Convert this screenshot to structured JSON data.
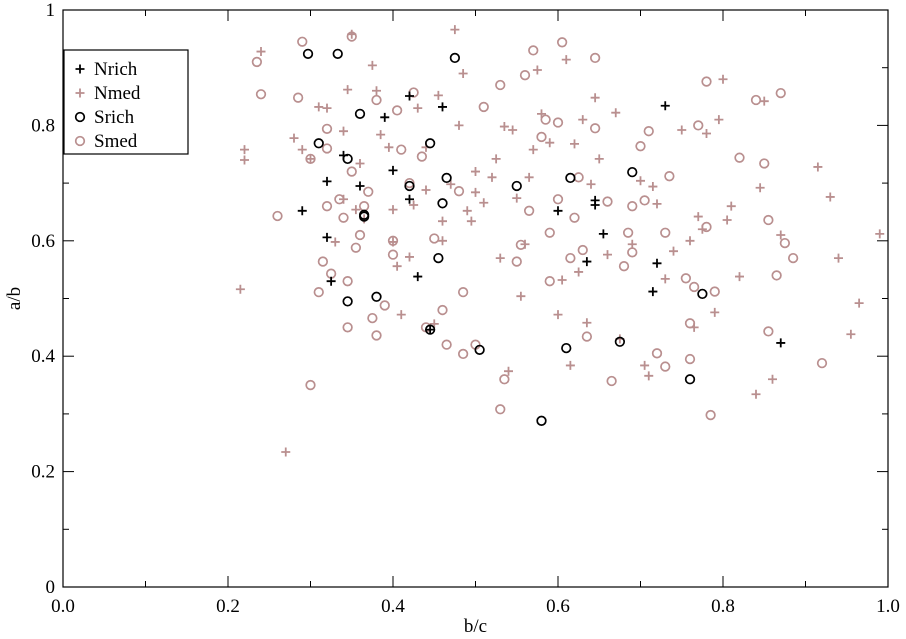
{
  "chart_data": {
    "type": "scatter",
    "xlabel": "b/c",
    "ylabel": "a/b",
    "xlim": [
      0,
      1
    ],
    "ylim": [
      0,
      1
    ],
    "x_ticks": [
      "0.0",
      "0.2",
      "0.4",
      "0.6",
      "0.8",
      "1.0"
    ],
    "y_ticks": [
      "0",
      "0.2",
      "0.4",
      "0.6",
      "0.8",
      "1"
    ],
    "grid": false,
    "legend_position": "top-left",
    "colors": {
      "rich": "#000000",
      "med": "#b98f8f"
    },
    "series": [
      {
        "name": "Nrich",
        "marker": "plus",
        "color": "#000000",
        "points": [
          [
            0.29,
            0.652
          ],
          [
            0.32,
            0.703
          ],
          [
            0.32,
            0.606
          ],
          [
            0.325,
            0.53
          ],
          [
            0.34,
            0.748
          ],
          [
            0.36,
            0.695
          ],
          [
            0.39,
            0.814
          ],
          [
            0.4,
            0.722
          ],
          [
            0.42,
            0.851
          ],
          [
            0.42,
            0.672
          ],
          [
            0.43,
            0.538
          ],
          [
            0.445,
            0.446
          ],
          [
            0.46,
            0.832
          ],
          [
            0.6,
            0.652
          ],
          [
            0.635,
            0.564
          ],
          [
            0.645,
            0.67
          ],
          [
            0.645,
            0.662
          ],
          [
            0.655,
            0.612
          ],
          [
            0.715,
            0.512
          ],
          [
            0.72,
            0.561
          ],
          [
            0.73,
            0.834
          ],
          [
            0.87,
            0.423
          ]
        ]
      },
      {
        "name": "Nmed",
        "marker": "plus",
        "color": "#b98f8f",
        "points": [
          [
            0.215,
            0.516
          ],
          [
            0.22,
            0.74
          ],
          [
            0.22,
            0.758
          ],
          [
            0.24,
            0.928
          ],
          [
            0.27,
            0.234
          ],
          [
            0.28,
            0.778
          ],
          [
            0.29,
            0.758
          ],
          [
            0.3,
            0.742
          ],
          [
            0.31,
            0.832
          ],
          [
            0.32,
            0.83
          ],
          [
            0.33,
            0.598
          ],
          [
            0.34,
            0.79
          ],
          [
            0.34,
            0.672
          ],
          [
            0.345,
            0.862
          ],
          [
            0.355,
            0.654
          ],
          [
            0.35,
            0.958
          ],
          [
            0.36,
            0.734
          ],
          [
            0.365,
            0.638
          ],
          [
            0.375,
            0.904
          ],
          [
            0.38,
            0.86
          ],
          [
            0.385,
            0.784
          ],
          [
            0.395,
            0.762
          ],
          [
            0.4,
            0.654
          ],
          [
            0.4,
            0.598
          ],
          [
            0.405,
            0.556
          ],
          [
            0.41,
            0.472
          ],
          [
            0.42,
            0.572
          ],
          [
            0.425,
            0.662
          ],
          [
            0.43,
            0.83
          ],
          [
            0.44,
            0.762
          ],
          [
            0.44,
            0.688
          ],
          [
            0.45,
            0.456
          ],
          [
            0.455,
            0.852
          ],
          [
            0.46,
            0.634
          ],
          [
            0.46,
            0.6
          ],
          [
            0.47,
            0.698
          ],
          [
            0.475,
            0.966
          ],
          [
            0.48,
            0.8
          ],
          [
            0.485,
            0.89
          ],
          [
            0.49,
            0.652
          ],
          [
            0.495,
            0.634
          ],
          [
            0.5,
            0.72
          ],
          [
            0.5,
            0.684
          ],
          [
            0.51,
            0.666
          ],
          [
            0.52,
            0.71
          ],
          [
            0.525,
            0.742
          ],
          [
            0.53,
            0.57
          ],
          [
            0.535,
            0.798
          ],
          [
            0.54,
            0.374
          ],
          [
            0.545,
            0.792
          ],
          [
            0.55,
            0.674
          ],
          [
            0.555,
            0.504
          ],
          [
            0.56,
            0.594
          ],
          [
            0.565,
            0.71
          ],
          [
            0.57,
            0.758
          ],
          [
            0.575,
            0.896
          ],
          [
            0.58,
            0.82
          ],
          [
            0.59,
            0.77
          ],
          [
            0.6,
            0.472
          ],
          [
            0.605,
            0.532
          ],
          [
            0.61,
            0.914
          ],
          [
            0.615,
            0.384
          ],
          [
            0.62,
            0.768
          ],
          [
            0.625,
            0.546
          ],
          [
            0.63,
            0.81
          ],
          [
            0.635,
            0.458
          ],
          [
            0.64,
            0.698
          ],
          [
            0.645,
            0.848
          ],
          [
            0.65,
            0.742
          ],
          [
            0.66,
            0.576
          ],
          [
            0.67,
            0.822
          ],
          [
            0.675,
            0.43
          ],
          [
            0.69,
            0.594
          ],
          [
            0.7,
            0.704
          ],
          [
            0.705,
            0.384
          ],
          [
            0.71,
            0.366
          ],
          [
            0.715,
            0.694
          ],
          [
            0.72,
            0.664
          ],
          [
            0.73,
            0.534
          ],
          [
            0.74,
            0.582
          ],
          [
            0.75,
            0.792
          ],
          [
            0.76,
            0.6
          ],
          [
            0.765,
            0.45
          ],
          [
            0.77,
            0.642
          ],
          [
            0.775,
            0.62
          ],
          [
            0.78,
            0.786
          ],
          [
            0.79,
            0.476
          ],
          [
            0.795,
            0.81
          ],
          [
            0.8,
            0.88
          ],
          [
            0.805,
            0.636
          ],
          [
            0.81,
            0.66
          ],
          [
            0.82,
            0.538
          ],
          [
            0.84,
            0.334
          ],
          [
            0.845,
            0.692
          ],
          [
            0.85,
            0.842
          ],
          [
            0.86,
            0.36
          ],
          [
            0.87,
            0.61
          ],
          [
            0.915,
            0.728
          ],
          [
            0.93,
            0.676
          ],
          [
            0.94,
            0.57
          ],
          [
            0.955,
            0.438
          ],
          [
            0.965,
            0.492
          ],
          [
            0.99,
            0.612
          ]
        ]
      },
      {
        "name": "Srich",
        "marker": "circle",
        "color": "#000000",
        "points": [
          [
            0.297,
            0.924
          ],
          [
            0.333,
            0.924
          ],
          [
            0.31,
            0.769
          ],
          [
            0.345,
            0.742
          ],
          [
            0.36,
            0.82
          ],
          [
            0.365,
            0.645
          ],
          [
            0.365,
            0.642
          ],
          [
            0.345,
            0.495
          ],
          [
            0.38,
            0.503
          ],
          [
            0.42,
            0.695
          ],
          [
            0.445,
            0.769
          ],
          [
            0.445,
            0.446
          ],
          [
            0.455,
            0.57
          ],
          [
            0.46,
            0.665
          ],
          [
            0.465,
            0.709
          ],
          [
            0.475,
            0.917
          ],
          [
            0.505,
            0.411
          ],
          [
            0.55,
            0.695
          ],
          [
            0.58,
            0.288
          ],
          [
            0.61,
            0.414
          ],
          [
            0.615,
            0.709
          ],
          [
            0.675,
            0.425
          ],
          [
            0.69,
            0.719
          ],
          [
            0.76,
            0.36
          ],
          [
            0.775,
            0.508
          ]
        ]
      },
      {
        "name": "Smed",
        "marker": "circle",
        "color": "#b98f8f",
        "points": [
          [
            0.235,
            0.91
          ],
          [
            0.24,
            0.854
          ],
          [
            0.26,
            0.643
          ],
          [
            0.285,
            0.848
          ],
          [
            0.29,
            0.945
          ],
          [
            0.3,
            0.742
          ],
          [
            0.3,
            0.35
          ],
          [
            0.31,
            0.511
          ],
          [
            0.315,
            0.564
          ],
          [
            0.32,
            0.794
          ],
          [
            0.32,
            0.76
          ],
          [
            0.32,
            0.66
          ],
          [
            0.325,
            0.543
          ],
          [
            0.335,
            0.672
          ],
          [
            0.34,
            0.64
          ],
          [
            0.345,
            0.45
          ],
          [
            0.345,
            0.53
          ],
          [
            0.35,
            0.954
          ],
          [
            0.35,
            0.72
          ],
          [
            0.355,
            0.588
          ],
          [
            0.36,
            0.61
          ],
          [
            0.365,
            0.66
          ],
          [
            0.37,
            0.685
          ],
          [
            0.375,
            0.466
          ],
          [
            0.38,
            0.436
          ],
          [
            0.38,
            0.844
          ],
          [
            0.39,
            0.488
          ],
          [
            0.4,
            0.576
          ],
          [
            0.4,
            0.6
          ],
          [
            0.405,
            0.826
          ],
          [
            0.41,
            0.758
          ],
          [
            0.42,
            0.7
          ],
          [
            0.425,
            0.857
          ],
          [
            0.435,
            0.746
          ],
          [
            0.44,
            0.45
          ],
          [
            0.45,
            0.604
          ],
          [
            0.46,
            0.48
          ],
          [
            0.465,
            0.42
          ],
          [
            0.48,
            0.686
          ],
          [
            0.485,
            0.404
          ],
          [
            0.485,
            0.511
          ],
          [
            0.5,
            0.42
          ],
          [
            0.51,
            0.832
          ],
          [
            0.53,
            0.87
          ],
          [
            0.53,
            0.308
          ],
          [
            0.535,
            0.36
          ],
          [
            0.55,
            0.564
          ],
          [
            0.555,
            0.593
          ],
          [
            0.56,
            0.887
          ],
          [
            0.565,
            0.652
          ],
          [
            0.57,
            0.93
          ],
          [
            0.58,
            0.78
          ],
          [
            0.585,
            0.81
          ],
          [
            0.59,
            0.614
          ],
          [
            0.59,
            0.53
          ],
          [
            0.6,
            0.672
          ],
          [
            0.6,
            0.805
          ],
          [
            0.605,
            0.944
          ],
          [
            0.615,
            0.57
          ],
          [
            0.62,
            0.64
          ],
          [
            0.625,
            0.71
          ],
          [
            0.63,
            0.584
          ],
          [
            0.635,
            0.434
          ],
          [
            0.645,
            0.795
          ],
          [
            0.645,
            0.917
          ],
          [
            0.66,
            0.668
          ],
          [
            0.665,
            0.357
          ],
          [
            0.68,
            0.556
          ],
          [
            0.685,
            0.614
          ],
          [
            0.69,
            0.66
          ],
          [
            0.69,
            0.58
          ],
          [
            0.7,
            0.764
          ],
          [
            0.705,
            0.67
          ],
          [
            0.71,
            0.79
          ],
          [
            0.72,
            0.405
          ],
          [
            0.73,
            0.382
          ],
          [
            0.73,
            0.614
          ],
          [
            0.735,
            0.712
          ],
          [
            0.755,
            0.535
          ],
          [
            0.76,
            0.457
          ],
          [
            0.76,
            0.395
          ],
          [
            0.765,
            0.52
          ],
          [
            0.77,
            0.8
          ],
          [
            0.78,
            0.624
          ],
          [
            0.78,
            0.876
          ],
          [
            0.785,
            0.298
          ],
          [
            0.79,
            0.512
          ],
          [
            0.82,
            0.744
          ],
          [
            0.84,
            0.844
          ],
          [
            0.85,
            0.734
          ],
          [
            0.855,
            0.636
          ],
          [
            0.855,
            0.443
          ],
          [
            0.865,
            0.54
          ],
          [
            0.87,
            0.856
          ],
          [
            0.875,
            0.596
          ],
          [
            0.885,
            0.57
          ],
          [
            0.92,
            0.388
          ]
        ]
      }
    ]
  }
}
